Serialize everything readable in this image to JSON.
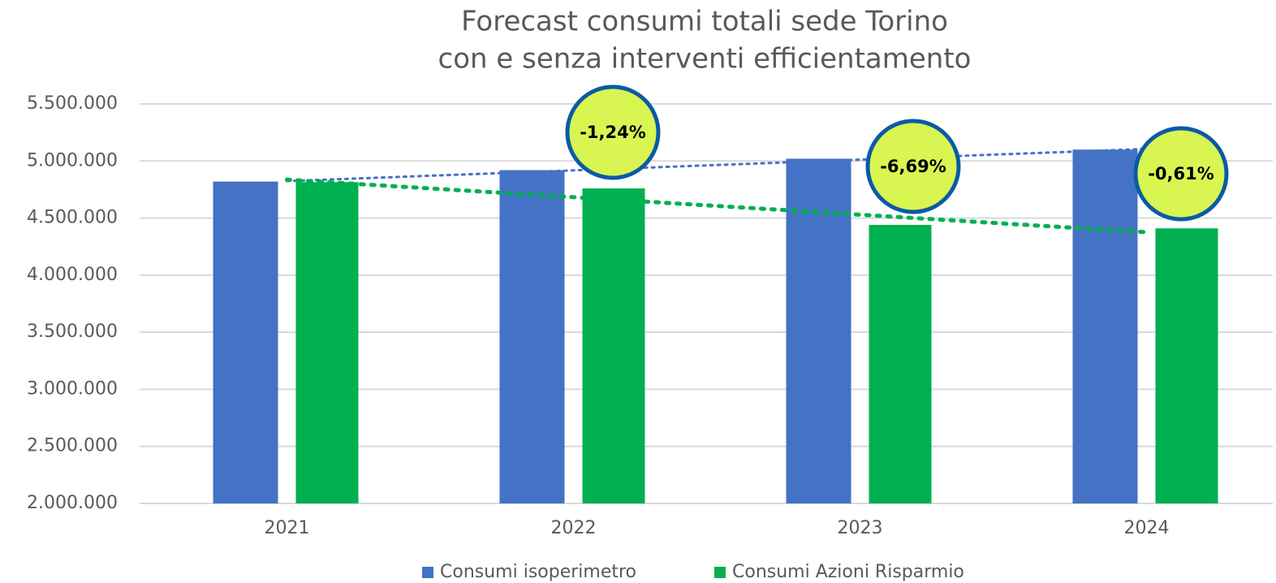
{
  "chart_data": {
    "type": "bar",
    "title": "Forecast consumi totali sede Torino",
    "subtitle": "con e senza interventi efficientamento",
    "categories": [
      "2021",
      "2022",
      "2023",
      "2024"
    ],
    "series": [
      {
        "name": "Consumi isoperimetro",
        "color": "#4472c4",
        "values": [
          4820000,
          4920000,
          5020000,
          5100000
        ]
      },
      {
        "name": "Consumi Azioni Risparmio",
        "color": "#00b050",
        "values": [
          4815000,
          4760000,
          4440000,
          4410000
        ]
      }
    ],
    "ylim": [
      2000000,
      5500000
    ],
    "yticks": [
      {
        "value": 2000000,
        "label": "2.000.000"
      },
      {
        "value": 2500000,
        "label": "2.500.000"
      },
      {
        "value": 3000000,
        "label": "3.000.000"
      },
      {
        "value": 3500000,
        "label": "3.500.000"
      },
      {
        "value": 4000000,
        "label": "4.000.000"
      },
      {
        "value": 4500000,
        "label": "4.500.000"
      },
      {
        "value": 5000000,
        "label": "5.000.000"
      },
      {
        "value": 5500000,
        "label": "5.500.000"
      }
    ],
    "grid": true,
    "trendline": true,
    "annotations": [
      "-1,24%",
      "-6,69%",
      "-0,61%"
    ],
    "legend": "bottom"
  }
}
